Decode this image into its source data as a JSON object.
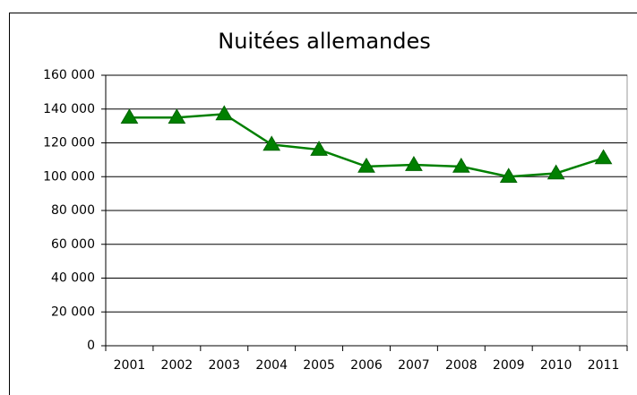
{
  "chart_data": {
    "type": "line",
    "title": "Nuitées allemandes",
    "categories": [
      "2001",
      "2002",
      "2003",
      "2004",
      "2005",
      "2006",
      "2007",
      "2008",
      "2009",
      "2010",
      "2011"
    ],
    "series": [
      {
        "name": "Nuitées allemandes",
        "color": "#008000",
        "values": [
          135000,
          135000,
          137000,
          119000,
          116000,
          106000,
          107000,
          106000,
          100000,
          102000,
          111000
        ]
      }
    ],
    "ylim": [
      0,
      160000
    ],
    "yticks": [
      0,
      {
        "value": 20000,
        "label": "20 000"
      },
      {
        "value": 40000,
        "label": "40 000"
      },
      {
        "value": 60000,
        "label": "60 000"
      },
      {
        "value": 80000,
        "label": "80 000"
      },
      {
        "value": 100000,
        "label": "100 000"
      },
      {
        "value": 120000,
        "label": "120 000"
      },
      {
        "value": 140000,
        "label": "140 000"
      },
      {
        "value": 160000,
        "label": "160 000"
      }
    ],
    "grid": true
  }
}
